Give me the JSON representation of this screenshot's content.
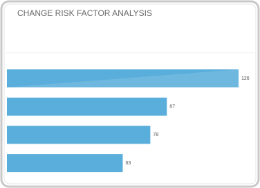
{
  "chart_data": {
    "type": "bar",
    "orientation": "horizontal",
    "title": "CHANGE RISK FACTOR ANALYSIS",
    "values": [
      126,
      87,
      78,
      63
    ],
    "color": "#5aaedb"
  }
}
